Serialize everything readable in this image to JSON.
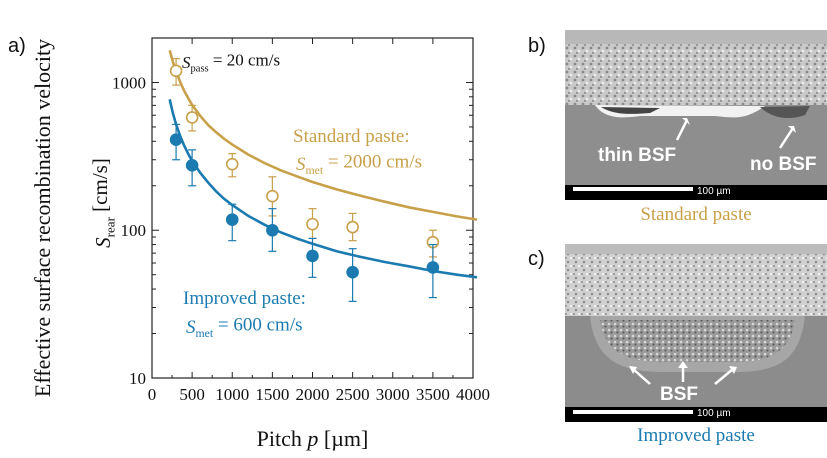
{
  "panels": {
    "a": "a)",
    "b": "b)",
    "c": "c)"
  },
  "colors": {
    "standard": "#c8a04a",
    "improved": "#1b7bb0",
    "axis": "#222222"
  },
  "chart_data": {
    "type": "scatter",
    "xlabel_main": "Pitch",
    "xlabel_sym": "p",
    "xlabel_unit": "[µm]",
    "ylabel_main": "Effective surface recombination velocity",
    "ylabel_sym": "S",
    "ylabel_sub": "rear",
    "ylabel_unit": "[cm/s]",
    "xlim": [
      0,
      4000
    ],
    "ylim": [
      10,
      2000
    ],
    "yscale": "log",
    "xticks": [
      "0",
      "500",
      "1000",
      "1500",
      "2000",
      "2500",
      "3000",
      "3500",
      "4000"
    ],
    "yticks": [
      {
        "v": 10,
        "label": "10"
      },
      {
        "v": 100,
        "label": "100"
      },
      {
        "v": 1000,
        "label": "1000"
      }
    ],
    "annotation": {
      "sym": "S",
      "sub": "pass",
      "text": " = 20 cm/s"
    },
    "series": [
      {
        "name": "Standard paste:",
        "param_sym": "S",
        "param_sub": "met",
        "param_text": " = 2000 cm/s",
        "marker": "open-circle",
        "x": [
          300,
          500,
          1000,
          1500,
          2000,
          2500,
          3500
        ],
        "y": [
          1200,
          580,
          280,
          170,
          110,
          105,
          83
        ],
        "yerr_lo": [
          960,
          470,
          230,
          125,
          88,
          85,
          66
        ],
        "yerr_hi": [
          1450,
          700,
          330,
          230,
          140,
          130,
          100
        ],
        "fit": [
          [
            220,
            1650
          ],
          [
            260,
            1380
          ],
          [
            300,
            1190
          ],
          [
            350,
            1010
          ],
          [
            400,
            880
          ],
          [
            450,
            785
          ],
          [
            500,
            705
          ],
          [
            600,
            595
          ],
          [
            700,
            515
          ],
          [
            800,
            460
          ],
          [
            900,
            415
          ],
          [
            1000,
            380
          ],
          [
            1200,
            325
          ],
          [
            1400,
            285
          ],
          [
            1600,
            255
          ],
          [
            1800,
            232
          ],
          [
            2000,
            212
          ],
          [
            2300,
            189
          ],
          [
            2600,
            171
          ],
          [
            2900,
            156
          ],
          [
            3200,
            143
          ],
          [
            3500,
            133
          ],
          [
            3800,
            124
          ],
          [
            4050,
            118
          ]
        ]
      },
      {
        "name": "Improved paste:",
        "param_sym": "S",
        "param_sub": "met",
        "param_text": " = 600 cm/s",
        "marker": "filled-circle",
        "x": [
          300,
          500,
          1000,
          1500,
          2000,
          2500,
          3500
        ],
        "y": [
          410,
          275,
          118,
          100,
          67,
          52,
          56
        ],
        "yerr_lo": [
          300,
          200,
          85,
          72,
          48,
          33,
          35
        ],
        "yerr_hi": [
          520,
          350,
          150,
          140,
          88,
          75,
          80
        ],
        "fit": [
          [
            220,
            770
          ],
          [
            260,
            620
          ],
          [
            300,
            520
          ],
          [
            350,
            435
          ],
          [
            400,
            375
          ],
          [
            450,
            330
          ],
          [
            500,
            295
          ],
          [
            600,
            245
          ],
          [
            700,
            210
          ],
          [
            800,
            183
          ],
          [
            900,
            163
          ],
          [
            1000,
            148
          ],
          [
            1200,
            125
          ],
          [
            1400,
            109
          ],
          [
            1600,
            97
          ],
          [
            1800,
            88
          ],
          [
            2000,
            81
          ],
          [
            2300,
            72
          ],
          [
            2600,
            66
          ],
          [
            2900,
            61
          ],
          [
            3200,
            57
          ],
          [
            3500,
            53
          ],
          [
            3800,
            50
          ],
          [
            4050,
            48
          ]
        ]
      }
    ]
  },
  "micrographs": {
    "b": {
      "labels": [
        "thin BSF",
        "no BSF"
      ],
      "scale": "100 µm",
      "caption": "Standard paste"
    },
    "c": {
      "labels": [
        "BSF"
      ],
      "scale": "100 µm",
      "caption": "Improved paste"
    }
  }
}
